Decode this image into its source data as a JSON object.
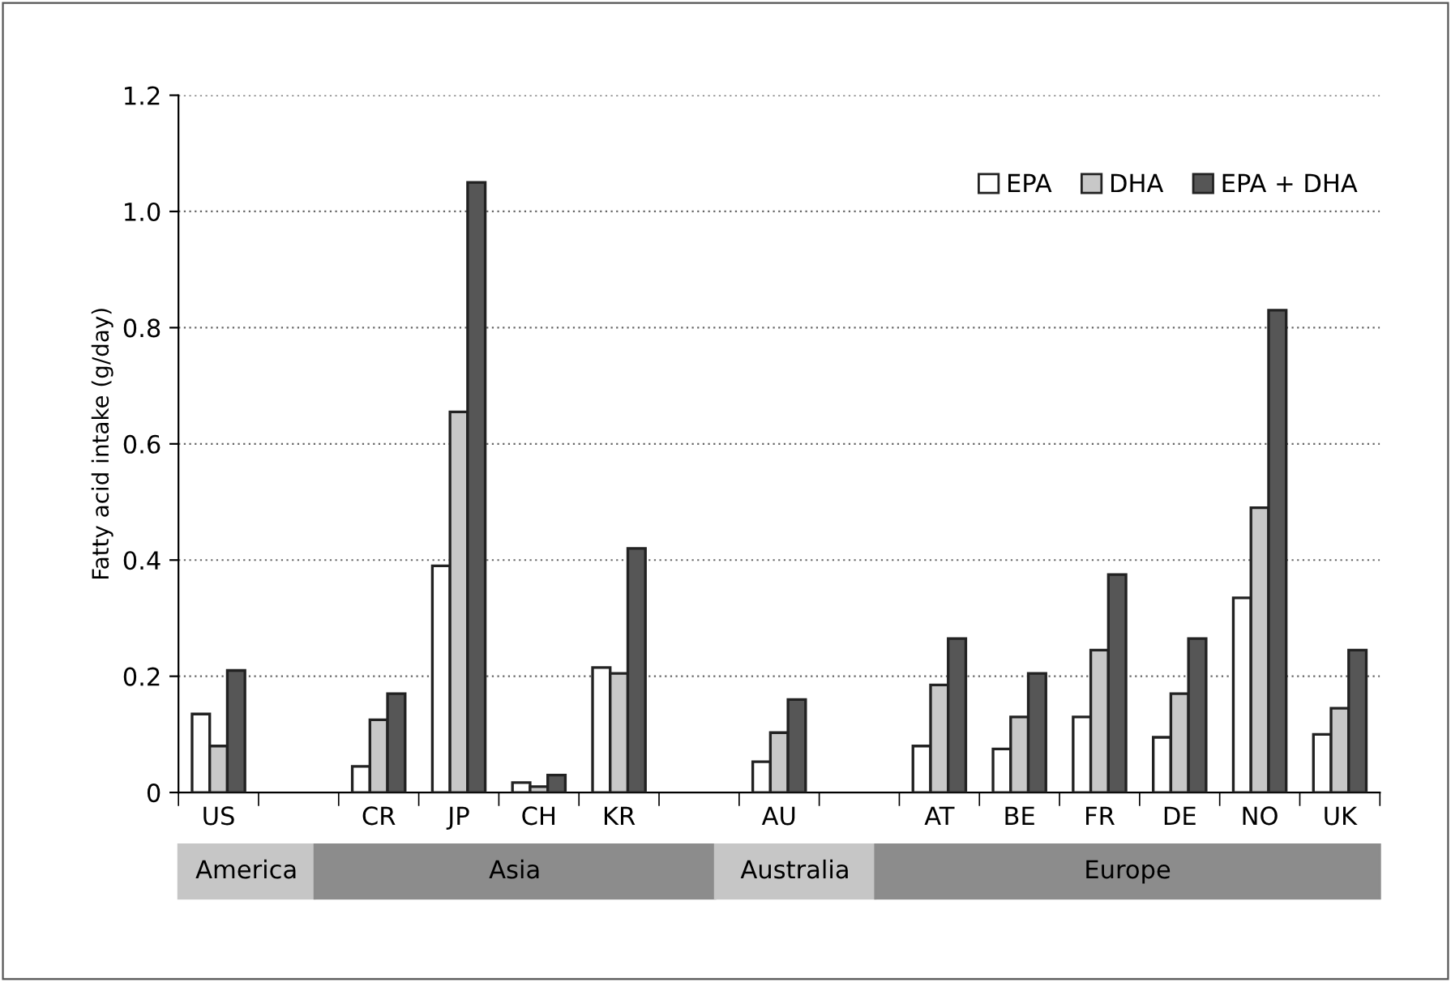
{
  "chart_data": {
    "type": "bar",
    "ylabel": "Fatty acid intake (g/day)",
    "categories": [
      "US",
      null,
      "CR",
      "JP",
      "CH",
      "KR",
      null,
      "AU",
      null,
      "AT",
      "BE",
      "FR",
      "DE",
      "NO",
      "UK"
    ],
    "series": [
      {
        "name": "EPA",
        "color": "#ffffff",
        "values": [
          0.135,
          null,
          0.045,
          0.39,
          0.017,
          0.215,
          null,
          0.053,
          null,
          0.08,
          0.075,
          0.13,
          0.095,
          0.335,
          0.1
        ]
      },
      {
        "name": "DHA",
        "color": "#c8c8c8",
        "values": [
          0.08,
          null,
          0.125,
          0.655,
          0.01,
          0.205,
          null,
          0.103,
          null,
          0.185,
          0.13,
          0.245,
          0.17,
          0.49,
          0.145
        ]
      },
      {
        "name": "EPA + DHA",
        "color": "#565656",
        "values": [
          0.21,
          null,
          0.17,
          1.05,
          0.03,
          0.42,
          null,
          0.16,
          null,
          0.265,
          0.205,
          0.375,
          0.265,
          0.83,
          0.245
        ]
      }
    ],
    "ylim": [
      0,
      1.2
    ],
    "yticks": [
      0,
      0.2,
      0.4,
      0.6,
      0.8,
      {
        "value": 1,
        "label": "1.0"
      },
      1.2
    ],
    "grid": "y",
    "legend": "top right",
    "annotations": [
      "America",
      "Asia",
      "Australia",
      "Europe"
    ]
  }
}
